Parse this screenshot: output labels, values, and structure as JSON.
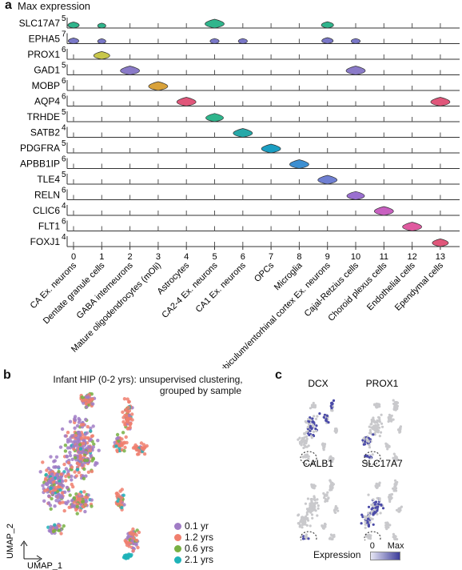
{
  "panel_a": {
    "letter": "a",
    "title": "Max expression"
  },
  "panel_b": {
    "letter": "b",
    "title_line1": "Infant HIP (0-2 yrs): unsupervised clustering,",
    "title_line2": "grouped by sample",
    "ylabel": "UMAP_2",
    "xlabel": "UMAP_1"
  },
  "panel_c": {
    "letter": "c",
    "genes": [
      "DCX",
      "PROX1",
      "CALB1",
      "SLC17A7"
    ],
    "legend_label": "Expression",
    "legend_min": "0",
    "legend_max": "Max"
  },
  "chart_data": [
    {
      "type": "violin",
      "title": "Max expression",
      "categories": [
        "0",
        "1",
        "2",
        "3",
        "4",
        "5",
        "6",
        "7",
        "8",
        "9",
        "10",
        "11",
        "12",
        "13"
      ],
      "category_labels": [
        "CA Ex. neurons",
        "Dentate granule cells",
        "GABA interneurons",
        "Mature oligodendrocytes (mOli)",
        "Astrocytes",
        "CA2-4 Ex. neurons",
        "CA1 Ex. neurons",
        "OPCs",
        "Microglia",
        "Subiculum/entorhinal cortex Ex. neurons",
        "Cajal-Retzius cells",
        "Choroid plexus cells",
        "Endothelial cells",
        "Ependymal cells"
      ],
      "genes": [
        {
          "name": "SLC17A7",
          "max": "5",
          "color": "#2fb58c",
          "values": [
            0.5,
            0.3,
            0,
            0,
            0,
            1.0,
            0,
            0,
            0,
            0.55,
            0,
            0,
            0,
            0
          ]
        },
        {
          "name": "EPHA5",
          "max": "7",
          "color": "#7a78c8",
          "values": [
            0.45,
            0.3,
            0,
            0,
            0,
            0.35,
            0.35,
            0,
            0,
            0.5,
            0.35,
            0,
            0,
            0
          ]
        },
        {
          "name": "PROX1",
          "max": "6",
          "color": "#c8c74a",
          "values": [
            0,
            0.8,
            0,
            0,
            0,
            0,
            0,
            0,
            0,
            0,
            0,
            0,
            0,
            0
          ]
        },
        {
          "name": "GAD1",
          "max": "5",
          "color": "#8a7ac8",
          "values": [
            0,
            0,
            1.0,
            0,
            0,
            0,
            0,
            0,
            0,
            0,
            1.0,
            0,
            0,
            0
          ]
        },
        {
          "name": "MOBP",
          "max": "6",
          "color": "#d9a23a",
          "values": [
            0,
            0,
            0,
            1.0,
            0,
            0,
            0,
            0,
            0,
            0,
            0,
            0,
            0,
            0
          ]
        },
        {
          "name": "AQP4",
          "max": "6",
          "color": "#e0567a",
          "values": [
            0,
            0,
            0,
            0,
            1.0,
            0,
            0,
            0,
            0,
            0,
            0,
            0,
            0,
            1.0
          ]
        },
        {
          "name": "TRHDE",
          "max": "5",
          "color": "#2fb58c",
          "values": [
            0,
            0,
            0,
            0,
            0,
            0.9,
            0,
            0,
            0,
            0,
            0,
            0,
            0,
            0
          ]
        },
        {
          "name": "SATB2",
          "max": "4",
          "color": "#26a8a8",
          "values": [
            0,
            0,
            0,
            0,
            0,
            0,
            1.0,
            0,
            0,
            0,
            0,
            0,
            0,
            0
          ]
        },
        {
          "name": "PDGFRA",
          "max": "5",
          "color": "#1a9ec2",
          "values": [
            0,
            0,
            0,
            0,
            0,
            0,
            0,
            1.0,
            0,
            0,
            0,
            0,
            0,
            0
          ]
        },
        {
          "name": "APBB1IP",
          "max": "6",
          "color": "#3d8fd1",
          "values": [
            0,
            0,
            0,
            0,
            0,
            0,
            0,
            0,
            1.0,
            0,
            0,
            0,
            0,
            0
          ]
        },
        {
          "name": "TLE4",
          "max": "5",
          "color": "#6f7fd2",
          "values": [
            0,
            0,
            0,
            0,
            0,
            0,
            0,
            0,
            0,
            1.0,
            0,
            0,
            0,
            0
          ]
        },
        {
          "name": "RELN",
          "max": "6",
          "color": "#9a6fd0",
          "values": [
            0,
            0,
            0,
            0,
            0,
            0,
            0,
            0,
            0,
            0,
            0.9,
            0,
            0,
            0
          ]
        },
        {
          "name": "CLIC6",
          "max": "4",
          "color": "#c860c0",
          "values": [
            0,
            0,
            0,
            0,
            0,
            0,
            0,
            0,
            0,
            0,
            0,
            1.0,
            0,
            0
          ]
        },
        {
          "name": "FLT1",
          "max": "6",
          "color": "#e05aa0",
          "values": [
            0,
            0,
            0,
            0,
            0,
            0,
            0,
            0,
            0,
            0,
            0,
            0,
            1.0,
            0
          ]
        },
        {
          "name": "FOXJ1",
          "max": "4",
          "color": "#e0567a",
          "values": [
            0,
            0,
            0,
            0,
            0,
            0,
            0,
            0,
            0,
            0,
            0,
            0,
            0,
            0.8
          ]
        }
      ]
    },
    {
      "type": "scatter",
      "title": "Infant HIP (0-2 yrs): unsupervised clustering, grouped by sample",
      "xlabel": "UMAP_1",
      "ylabel": "UMAP_2",
      "legend_position": "bottom-right",
      "series": [
        {
          "name": "0.1 yr",
          "color": "#a07cc5"
        },
        {
          "name": "1.2 yrs",
          "color": "#f07f6e"
        },
        {
          "name": "0.6 yrs",
          "color": "#78b043"
        },
        {
          "name": "2.1 yrs",
          "color": "#1fb3b8"
        }
      ]
    }
  ]
}
